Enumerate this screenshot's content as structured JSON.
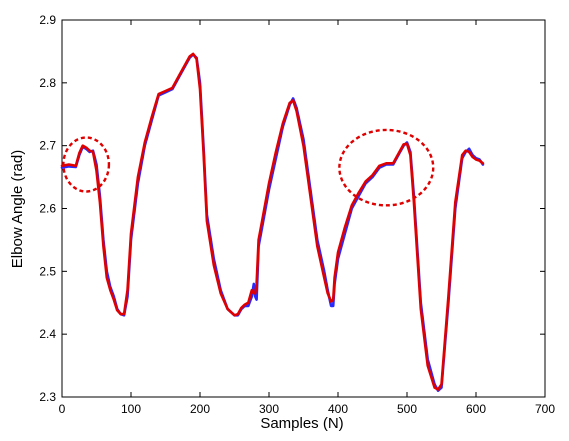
{
  "chart_data": {
    "type": "line",
    "title": "",
    "xlabel": "Samples (N)",
    "ylabel": "Elbow Angle (rad)",
    "xlim": [
      0,
      700
    ],
    "ylim": [
      2.3,
      2.9
    ],
    "xticks": [
      0,
      100,
      200,
      300,
      400,
      500,
      600,
      700
    ],
    "yticks": [
      2.3,
      2.4,
      2.5,
      2.6,
      2.7,
      2.8,
      2.9
    ],
    "grid": false,
    "series": [
      {
        "color": "#2a2aff",
        "x": [
          0,
          10,
          20,
          25,
          30,
          35,
          40,
          45,
          50,
          55,
          60,
          65,
          70,
          75,
          80,
          85,
          90,
          95,
          100,
          110,
          120,
          130,
          140,
          150,
          160,
          170,
          180,
          185,
          190,
          195,
          200,
          205,
          210,
          220,
          230,
          240,
          250,
          255,
          260,
          265,
          270,
          275,
          278,
          280,
          282,
          285,
          290,
          300,
          310,
          320,
          330,
          335,
          340,
          350,
          360,
          370,
          380,
          385,
          390,
          393,
          395,
          400,
          410,
          420,
          430,
          440,
          450,
          460,
          470,
          480,
          490,
          495,
          500,
          505,
          510,
          520,
          530,
          540,
          545,
          550,
          560,
          570,
          580,
          585,
          590,
          595,
          600,
          605,
          610
        ],
        "y": [
          2.665,
          2.667,
          2.666,
          2.685,
          2.698,
          2.695,
          2.69,
          2.692,
          2.67,
          2.62,
          2.55,
          2.5,
          2.475,
          2.46,
          2.44,
          2.432,
          2.43,
          2.46,
          2.55,
          2.64,
          2.7,
          2.74,
          2.78,
          2.785,
          2.79,
          2.81,
          2.83,
          2.84,
          2.845,
          2.84,
          2.8,
          2.7,
          2.59,
          2.52,
          2.47,
          2.44,
          2.43,
          2.43,
          2.44,
          2.445,
          2.445,
          2.46,
          2.48,
          2.46,
          2.455,
          2.54,
          2.57,
          2.63,
          2.68,
          2.73,
          2.765,
          2.775,
          2.76,
          2.71,
          2.63,
          2.55,
          2.5,
          2.47,
          2.445,
          2.445,
          2.48,
          2.52,
          2.56,
          2.6,
          2.62,
          2.64,
          2.65,
          2.665,
          2.67,
          2.67,
          2.69,
          2.7,
          2.705,
          2.69,
          2.62,
          2.45,
          2.36,
          2.32,
          2.31,
          2.315,
          2.45,
          2.6,
          2.68,
          2.69,
          2.695,
          2.685,
          2.68,
          2.678,
          2.67
        ]
      },
      {
        "color": "#e00000",
        "x": [
          0,
          10,
          20,
          25,
          30,
          35,
          40,
          45,
          50,
          55,
          60,
          65,
          70,
          75,
          80,
          85,
          90,
          95,
          100,
          110,
          120,
          130,
          140,
          150,
          160,
          170,
          180,
          185,
          190,
          195,
          200,
          205,
          210,
          220,
          230,
          240,
          250,
          255,
          260,
          265,
          270,
          275,
          278,
          280,
          282,
          285,
          290,
          300,
          310,
          320,
          330,
          335,
          340,
          350,
          360,
          370,
          380,
          385,
          390,
          393,
          395,
          400,
          410,
          420,
          430,
          440,
          450,
          460,
          470,
          480,
          490,
          495,
          500,
          505,
          510,
          520,
          530,
          540,
          545,
          550,
          560,
          570,
          580,
          585,
          590,
          595,
          600,
          605,
          610
        ],
        "y": [
          2.668,
          2.67,
          2.668,
          2.688,
          2.7,
          2.697,
          2.692,
          2.69,
          2.66,
          2.61,
          2.54,
          2.49,
          2.47,
          2.455,
          2.438,
          2.432,
          2.432,
          2.47,
          2.56,
          2.65,
          2.705,
          2.745,
          2.782,
          2.787,
          2.792,
          2.812,
          2.832,
          2.842,
          2.846,
          2.838,
          2.79,
          2.69,
          2.58,
          2.51,
          2.465,
          2.44,
          2.43,
          2.432,
          2.442,
          2.447,
          2.45,
          2.47,
          2.465,
          2.465,
          2.48,
          2.55,
          2.58,
          2.64,
          2.69,
          2.735,
          2.768,
          2.772,
          2.755,
          2.7,
          2.62,
          2.54,
          2.49,
          2.465,
          2.452,
          2.455,
          2.49,
          2.53,
          2.57,
          2.605,
          2.625,
          2.643,
          2.653,
          2.668,
          2.672,
          2.672,
          2.692,
          2.702,
          2.703,
          2.685,
          2.61,
          2.44,
          2.35,
          2.315,
          2.312,
          2.32,
          2.46,
          2.61,
          2.685,
          2.692,
          2.69,
          2.682,
          2.678,
          2.676,
          2.672
        ]
      }
    ],
    "annotations": [
      {
        "shape": "dashed-ellipse",
        "color": "#e00000",
        "cx": 35,
        "cy": 2.67,
        "rx": 33,
        "ry": 0.043
      },
      {
        "shape": "dashed-ellipse",
        "color": "#e00000",
        "cx": 470,
        "cy": 2.665,
        "rx": 68,
        "ry": 0.06
      }
    ]
  }
}
